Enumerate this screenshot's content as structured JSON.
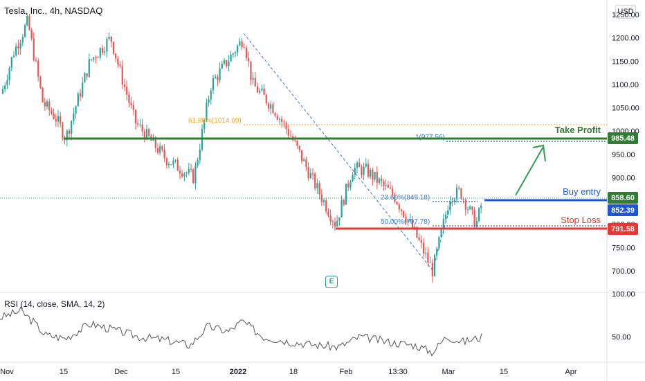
{
  "header": {
    "title": "Tesla, Inc., 4h, NASDAQ",
    "currency": "USD"
  },
  "colors": {
    "up": "#26a69a",
    "down": "#ef5350",
    "green": "#2e7d32",
    "red": "#e53935",
    "blue": "#1e56d6",
    "fib": "#f5a623",
    "fib_blue": "#3b78d8",
    "rsi": "#555555",
    "earnings": "#2a9d8f"
  },
  "price_axis": {
    "ticks": [
      "1250.00",
      "1200.00",
      "1150.00",
      "1100.00",
      "1050.00",
      "1000.00",
      "950.00",
      "900.00",
      "850.00",
      "800.00",
      "750.00",
      "700.00"
    ]
  },
  "rsi_axis": {
    "ticks": [
      "100.00",
      "50.00"
    ]
  },
  "time_axis": {
    "labels": [
      "Nov",
      "15",
      "Dec",
      "15",
      "2022",
      "18",
      "Feb",
      "13:30",
      "Mar",
      "15",
      "Apr"
    ]
  },
  "rsi": {
    "label": "RSI (14, close, SMA, 14, 2)"
  },
  "earnings": {
    "label": "E"
  },
  "levels": {
    "take_profit": {
      "label": "Take Profit",
      "value": 985.48,
      "tag": "985.48"
    },
    "buy_entry": {
      "label": "Buy entry",
      "value": 858.6,
      "tag": "858.60"
    },
    "current": {
      "value": 852.39,
      "tag": "852.39"
    },
    "stop_loss": {
      "label": "Stop Loss",
      "value": 791.58,
      "tag": "791.58"
    }
  },
  "fib": {
    "l618": "61.80%(1014.60)",
    "l1": "1(977.56)",
    "l236": "23.60%(849.18)",
    "l50": "50.00%(797.78)"
  },
  "chart_data": {
    "type": "candlestick",
    "symbol": "TSLA",
    "interval": "4h",
    "exchange": "NASDAQ",
    "ylim": [
      690,
      1270
    ],
    "x": [
      "Nov",
      "15",
      "Dec",
      "15",
      "2022",
      "18",
      "Feb",
      "13:30",
      "Mar",
      "15",
      "Apr"
    ],
    "close_path": [
      {
        "x": "Nov",
        "y": 1080
      },
      {
        "x": "Nov",
        "y": 1170
      },
      {
        "x": "Nov",
        "y": 1235
      },
      {
        "x": "15",
        "y": 1060
      },
      {
        "x": "15",
        "y": 1030
      },
      {
        "x": "15",
        "y": 985
      },
      {
        "x": "15",
        "y": 1150
      },
      {
        "x": "Dec",
        "y": 1200
      },
      {
        "x": "Dec",
        "y": 1120
      },
      {
        "x": "Dec",
        "y": 1020
      },
      {
        "x": "15",
        "y": 940
      },
      {
        "x": "15",
        "y": 900
      },
      {
        "x": "15",
        "y": 1100
      },
      {
        "x": "2022",
        "y": 1200
      },
      {
        "x": "2022",
        "y": 1100
      },
      {
        "x": "18",
        "y": 1050
      },
      {
        "x": "18",
        "y": 990
      },
      {
        "x": "18",
        "y": 900
      },
      {
        "x": "Feb",
        "y": 800
      },
      {
        "x": "Feb",
        "y": 920
      },
      {
        "x": "Feb",
        "y": 915
      },
      {
        "x": "13:30",
        "y": 860
      },
      {
        "x": "13:30",
        "y": 780
      },
      {
        "x": "13:30",
        "y": 700
      },
      {
        "x": "Mar",
        "y": 860
      },
      {
        "x": "Mar",
        "y": 870
      },
      {
        "x": "Mar",
        "y": 800
      },
      {
        "x": "Mar",
        "y": 855
      }
    ],
    "horizontal_lines": [
      {
        "name": "Take Profit",
        "value": 985.48
      },
      {
        "name": "Buy entry",
        "value": 858.6
      },
      {
        "name": "Stop Loss",
        "value": 791.58
      }
    ],
    "fib_levels": [
      {
        "label": "61.80%",
        "value": 1014.6
      },
      {
        "label": "1",
        "value": 977.56
      },
      {
        "label": "23.60%",
        "value": 849.18
      },
      {
        "label": "50.00%",
        "value": 797.78
      }
    ],
    "last_price": 852.39,
    "rsi": {
      "period": 14,
      "source": "close",
      "ma": "SMA",
      "ma_length": 14,
      "bb_mult": 2,
      "ylim": [
        0,
        100
      ]
    }
  }
}
